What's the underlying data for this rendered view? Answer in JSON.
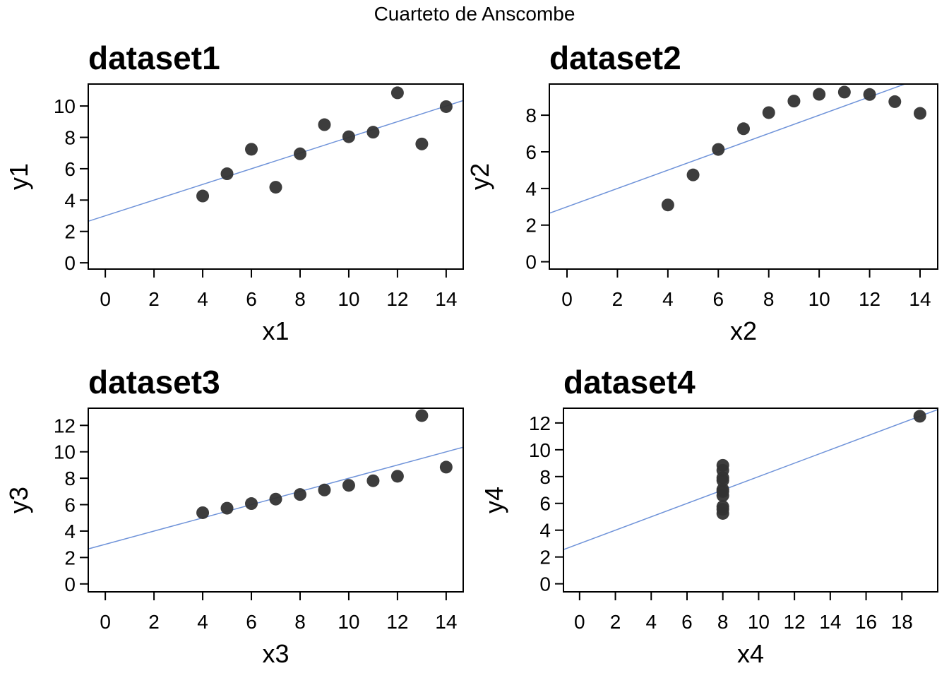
{
  "figure_title": "Cuarteto de Anscombe",
  "colors": {
    "points": "#333333",
    "fit_line": "#6f93d9",
    "frame": "#000000"
  },
  "chart_data": [
    {
      "type": "scatter",
      "title": "dataset1",
      "xlabel": "x1",
      "ylabel": "y1",
      "xlim": [
        -0.7,
        14.7
      ],
      "ylim": [
        -0.4,
        11.4
      ],
      "xticks": [
        0,
        2,
        4,
        6,
        8,
        10,
        12,
        14
      ],
      "yticks": [
        0,
        2,
        4,
        6,
        8,
        10
      ],
      "x": [
        10,
        8,
        13,
        9,
        11,
        14,
        6,
        4,
        12,
        7,
        5
      ],
      "y": [
        8.04,
        6.95,
        7.58,
        8.81,
        8.33,
        9.96,
        7.24,
        4.26,
        10.84,
        4.82,
        5.68
      ],
      "fit": {
        "intercept": 3.0,
        "slope": 0.5
      }
    },
    {
      "type": "scatter",
      "title": "dataset2",
      "xlabel": "x2",
      "ylabel": "y2",
      "xlim": [
        -0.7,
        14.7
      ],
      "ylim": [
        -0.4,
        9.7
      ],
      "xticks": [
        0,
        2,
        4,
        6,
        8,
        10,
        12,
        14
      ],
      "yticks": [
        0,
        2,
        4,
        6,
        8
      ],
      "x": [
        10,
        8,
        13,
        9,
        11,
        14,
        6,
        4,
        12,
        7,
        5
      ],
      "y": [
        9.14,
        8.14,
        8.74,
        8.77,
        9.26,
        8.1,
        6.13,
        3.1,
        9.13,
        7.26,
        4.74
      ],
      "fit": {
        "intercept": 3.0,
        "slope": 0.5
      }
    },
    {
      "type": "scatter",
      "title": "dataset3",
      "xlabel": "x3",
      "ylabel": "y3",
      "xlim": [
        -0.7,
        14.7
      ],
      "ylim": [
        -0.6,
        13.3
      ],
      "xticks": [
        0,
        2,
        4,
        6,
        8,
        10,
        12,
        14
      ],
      "yticks": [
        0,
        2,
        4,
        6,
        8,
        10,
        12
      ],
      "x": [
        10,
        8,
        13,
        9,
        11,
        14,
        6,
        4,
        12,
        7,
        5
      ],
      "y": [
        7.46,
        6.77,
        12.74,
        7.11,
        7.81,
        8.84,
        6.08,
        5.39,
        8.15,
        6.42,
        5.73
      ],
      "fit": {
        "intercept": 3.0,
        "slope": 0.5
      }
    },
    {
      "type": "scatter",
      "title": "dataset4",
      "xlabel": "x4",
      "ylabel": "y4",
      "xlim": [
        -0.9,
        20.0
      ],
      "ylim": [
        -0.6,
        13.1
      ],
      "xticks": [
        0,
        2,
        4,
        6,
        8,
        10,
        12,
        14,
        16,
        18
      ],
      "yticks": [
        0,
        2,
        4,
        6,
        8,
        10,
        12
      ],
      "x": [
        8,
        8,
        8,
        8,
        8,
        8,
        8,
        19,
        8,
        8,
        8
      ],
      "y": [
        6.58,
        5.76,
        7.71,
        8.84,
        8.47,
        7.04,
        5.25,
        12.5,
        5.56,
        7.91,
        6.89
      ],
      "fit": {
        "intercept": 3.0,
        "slope": 0.5
      }
    }
  ]
}
